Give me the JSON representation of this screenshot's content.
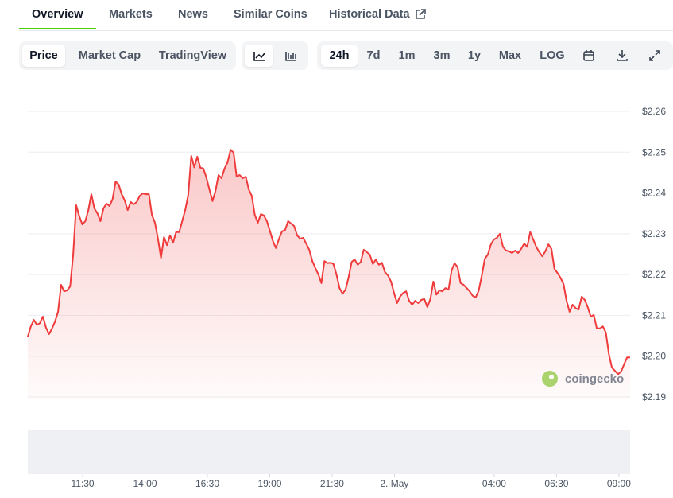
{
  "tabs": [
    "Overview",
    "Markets",
    "News",
    "Similar Coins",
    "Historical Data"
  ],
  "active_tab": "Overview",
  "chart_modes": [
    "Price",
    "Market Cap",
    "TradingView"
  ],
  "ranges": [
    "24h",
    "7d",
    "1m",
    "3m",
    "1y",
    "Max",
    "LOG"
  ],
  "watermark": "coingecko",
  "chart_data": {
    "type": "line",
    "color": "#ef3b3b",
    "ylim": [
      2.19,
      2.26
    ],
    "yticks": [
      {
        "value": 2.19,
        "label": "$2.19"
      },
      {
        "value": 2.2,
        "label": "$2.20"
      },
      {
        "value": 2.21,
        "label": "$2.21"
      },
      {
        "value": 2.22,
        "label": "$2.22"
      },
      {
        "value": 2.23,
        "label": "$2.23"
      },
      {
        "value": 2.24,
        "label": "$2.24"
      },
      {
        "value": 2.25,
        "label": "$2.25"
      },
      {
        "value": 2.26,
        "label": "$2.26"
      }
    ],
    "xlim": [
      9.3,
      33.45
    ],
    "xticks": [
      {
        "value": 11.5,
        "label": "11:30"
      },
      {
        "value": 14,
        "label": "14:00"
      },
      {
        "value": 16.5,
        "label": "16:30"
      },
      {
        "value": 19,
        "label": "19:00"
      },
      {
        "value": 21.5,
        "label": "21:30"
      },
      {
        "value": 24,
        "label": "2. May"
      },
      {
        "value": 28,
        "label": "04:00"
      },
      {
        "value": 30.5,
        "label": "06:30"
      },
      {
        "value": 33,
        "label": "09:00"
      }
    ],
    "grid": true,
    "values": [
      2.2048,
      2.2073,
      2.2089,
      2.2077,
      2.2081,
      2.2097,
      2.207,
      2.2054,
      2.2068,
      2.2085,
      2.2109,
      2.2175,
      2.2159,
      2.2161,
      2.2171,
      2.2249,
      2.237,
      2.2343,
      2.2323,
      2.2331,
      2.2358,
      2.2397,
      2.2362,
      2.235,
      2.2331,
      2.2362,
      2.2374,
      2.2368,
      2.2385,
      2.2428,
      2.2421,
      2.2397,
      2.2382,
      2.2358,
      2.2378,
      2.2372,
      2.2378,
      2.2393,
      2.2399,
      2.2397,
      2.2397,
      2.2346,
      2.2327,
      2.2288,
      2.2241,
      2.2292,
      2.2272,
      2.2296,
      2.2278,
      2.2304,
      2.2304,
      2.2331,
      2.2358,
      2.2395,
      2.2491,
      2.2463,
      2.2489,
      2.2462,
      2.246,
      2.2438,
      2.2409,
      2.238,
      2.2405,
      2.2444,
      2.2436,
      2.246,
      2.2475,
      2.2506,
      2.2499,
      2.244,
      2.2444,
      2.2436,
      2.244,
      2.2409,
      2.2393,
      2.2346,
      2.2327,
      2.2348,
      2.2345,
      2.2331,
      2.2307,
      2.2282,
      2.2265,
      2.2288,
      2.2306,
      2.2309,
      2.2331,
      2.2325,
      2.2319,
      2.2296,
      2.2288,
      2.229,
      2.2276,
      2.2261,
      2.2233,
      2.2216,
      2.22,
      2.2179,
      2.2233,
      2.2228,
      2.2229,
      2.2226,
      2.22,
      2.2167,
      2.2153,
      2.2163,
      2.2194,
      2.2231,
      2.2237,
      2.2224,
      2.2231,
      2.2261,
      2.2255,
      2.2249,
      2.2226,
      2.2237,
      2.2224,
      2.2229,
      2.2206,
      2.2198,
      2.2183,
      2.2155,
      2.213,
      2.2146,
      2.2155,
      2.2159,
      2.2136,
      2.2126,
      2.2136,
      2.213,
      2.2138,
      2.214,
      2.212,
      2.214,
      2.2183,
      2.2151,
      2.2161,
      2.2159,
      2.2167,
      2.2163,
      2.221,
      2.2228,
      2.2218,
      2.2179,
      2.2175,
      2.2167,
      2.2159,
      2.2148,
      2.2144,
      2.2161,
      2.2198,
      2.2239,
      2.2249,
      2.2274,
      2.2286,
      2.229,
      2.23,
      2.2268,
      2.2259,
      2.2257,
      2.2253,
      2.2259,
      2.2253,
      2.2263,
      2.2276,
      2.2268,
      2.2304,
      2.2286,
      2.2268,
      2.2255,
      2.2245,
      2.2257,
      2.2274,
      2.2263,
      2.2214,
      2.2204,
      2.2192,
      2.2177,
      2.2136,
      2.2109,
      2.2126,
      2.2118,
      2.2114,
      2.2146,
      2.2138,
      2.212,
      2.2097,
      2.2101,
      2.2068,
      2.2068,
      2.2073,
      2.2058,
      2.2005,
      2.1972,
      2.1964,
      2.1956,
      2.1962,
      2.198,
      2.1997,
      2.1997
    ]
  }
}
